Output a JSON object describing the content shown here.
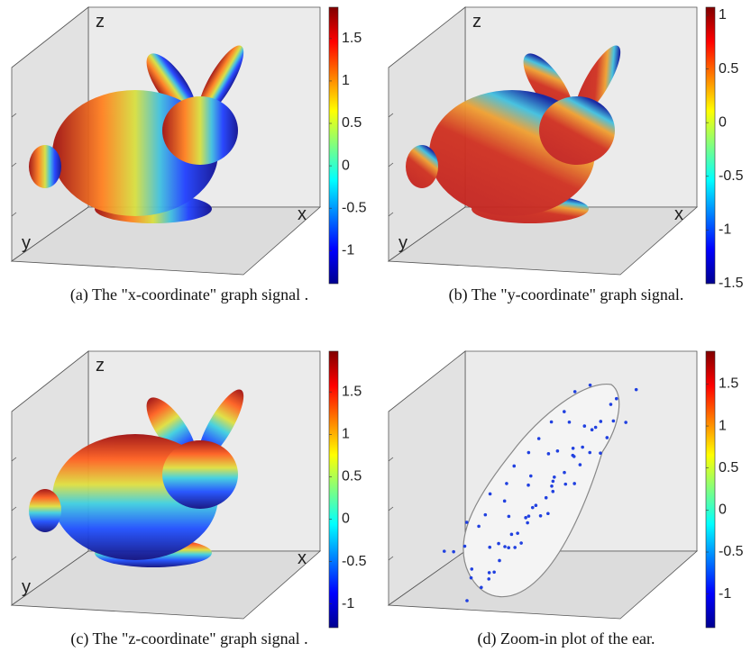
{
  "panels": [
    {
      "axis_labels": {
        "z": "z",
        "x": "x",
        "y": "y"
      },
      "colorbar": {
        "lim": [
          -1.39,
          1.87
        ],
        "ticks": [
          -1,
          -0.5,
          0,
          0.5,
          1,
          1.5
        ]
      },
      "caption": "(a) The \"x-coordinate\" graph signal ."
    },
    {
      "axis_labels": {
        "z": "z",
        "x": "x",
        "y": "y"
      },
      "colorbar": {
        "lim": [
          -1.5,
          1.075
        ],
        "ticks": [
          -1.5,
          -1,
          -0.5,
          0,
          0.5,
          1
        ]
      },
      "caption": "(b) The \"y-coordinate\" graph signal."
    },
    {
      "axis_labels": {
        "z": "z",
        "x": "x",
        "y": "y"
      },
      "colorbar": {
        "lim": [
          -1.28,
          1.98
        ],
        "ticks": [
          -1,
          -0.5,
          0,
          0.5,
          1,
          1.5
        ]
      },
      "caption": "(c) The \"z-coordinate\" graph signal ."
    },
    {
      "colorbar": {
        "lim": [
          -1.4,
          1.89
        ],
        "ticks": [
          -1,
          -0.5,
          0,
          0.5,
          1,
          1.5
        ]
      },
      "caption": "(d) Zoom-in plot of the ear."
    }
  ]
}
